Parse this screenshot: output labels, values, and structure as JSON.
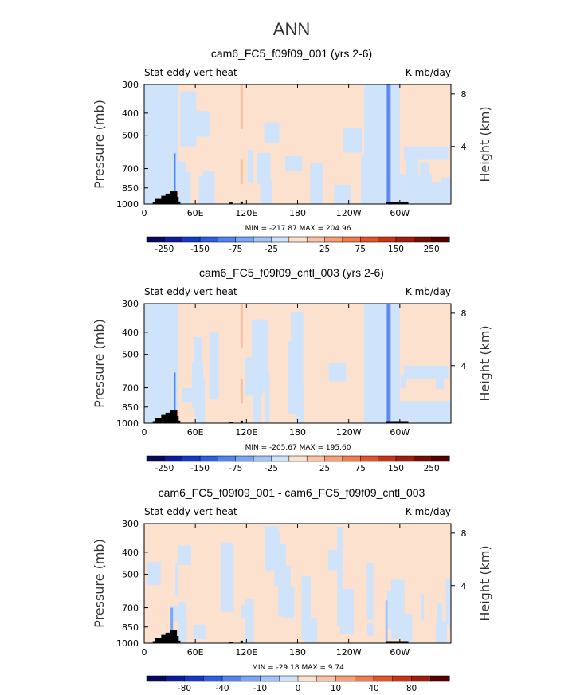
{
  "figure": {
    "title": "ANN"
  },
  "colors": {
    "low": "#cfe3fb",
    "high": "#fde1cf",
    "blue_jet": "#1b3fd9",
    "red_spot": "#e8602a",
    "topo": "#000000"
  },
  "chart_data": [
    {
      "type": "heatmap",
      "title": "cam6_FC5_f09f09_001 (yrs 2-6)",
      "left_label": "Stat eddy vert heat",
      "right_label": "K mb/day",
      "ylabel": "Pressure (mb)",
      "ylabel_right": "Height (km)",
      "x_ticks": [
        "0",
        "60E",
        "120E",
        "180",
        "120W",
        "60W"
      ],
      "x_tick_values": [
        0,
        60,
        120,
        180,
        240,
        300
      ],
      "xlim": [
        0,
        360
      ],
      "y_ticks": [
        "300",
        "400",
        "500",
        "700",
        "850",
        "1000"
      ],
      "y_tick_values": [
        300,
        400,
        500,
        700,
        850,
        1000
      ],
      "ylim": [
        1000,
        300
      ],
      "y_scale": "log",
      "height_ticks": [
        "4",
        "8"
      ],
      "height_tick_values": [
        4,
        8
      ],
      "stats": "MIN = -217.87   MAX = 204.96",
      "min": -217.87,
      "max": 204.96,
      "colorbar_labels": [
        "-250",
        "-150",
        "-75",
        "-25",
        "25",
        "75",
        "150",
        "250"
      ],
      "colorbar_levels": [
        -250,
        -200,
        -150,
        -100,
        -75,
        -50,
        -25,
        -10,
        10,
        25,
        50,
        75,
        100,
        150,
        200,
        250
      ],
      "colorbar_colors": [
        "#08085e",
        "#0d1c9c",
        "#1338cc",
        "#2a5fe6",
        "#4f84f2",
        "#79a6f7",
        "#a3c4fa",
        "#cfe3fb",
        "#fde1cf",
        "#fbc2a4",
        "#f89f76",
        "#f37a4d",
        "#e65327",
        "#cc3214",
        "#a31c0b",
        "#7a0b05",
        "#560000"
      ]
    },
    {
      "type": "heatmap",
      "title": "cam6_FC5_f09f09_cntl_003 (yrs 2-6)",
      "left_label": "Stat eddy vert heat",
      "right_label": "K mb/day",
      "ylabel": "Pressure (mb)",
      "ylabel_right": "Height (km)",
      "x_ticks": [
        "0",
        "60E",
        "120E",
        "180",
        "120W",
        "60W"
      ],
      "x_tick_values": [
        0,
        60,
        120,
        180,
        240,
        300
      ],
      "xlim": [
        0,
        360
      ],
      "y_ticks": [
        "300",
        "400",
        "500",
        "700",
        "850",
        "1000"
      ],
      "y_tick_values": [
        300,
        400,
        500,
        700,
        850,
        1000
      ],
      "ylim": [
        1000,
        300
      ],
      "y_scale": "log",
      "height_ticks": [
        "4",
        "8"
      ],
      "height_tick_values": [
        4,
        8
      ],
      "stats": "MIN = -205.67   MAX = 195.60",
      "min": -205.67,
      "max": 195.6,
      "colorbar_labels": [
        "-250",
        "-150",
        "-75",
        "-25",
        "25",
        "75",
        "150",
        "250"
      ],
      "colorbar_levels": [
        -250,
        -200,
        -150,
        -100,
        -75,
        -50,
        -25,
        -10,
        10,
        25,
        50,
        75,
        100,
        150,
        200,
        250
      ],
      "colorbar_colors": [
        "#08085e",
        "#0d1c9c",
        "#1338cc",
        "#2a5fe6",
        "#4f84f2",
        "#79a6f7",
        "#a3c4fa",
        "#cfe3fb",
        "#fde1cf",
        "#fbc2a4",
        "#f89f76",
        "#f37a4d",
        "#e65327",
        "#cc3214",
        "#a31c0b",
        "#7a0b05",
        "#560000"
      ]
    },
    {
      "type": "heatmap",
      "title": "cam6_FC5_f09f09_001 - cam6_FC5_f09f09_cntl_003",
      "left_label": "Stat eddy vert heat",
      "right_label": "K mb/day",
      "ylabel": "Pressure (mb)",
      "ylabel_right": "Height (km)",
      "x_ticks": [
        "0",
        "60E",
        "120E",
        "180",
        "120W",
        "60W"
      ],
      "x_tick_values": [
        0,
        60,
        120,
        180,
        240,
        300
      ],
      "xlim": [
        0,
        360
      ],
      "y_ticks": [
        "300",
        "400",
        "500",
        "700",
        "850",
        "1000"
      ],
      "y_tick_values": [
        300,
        400,
        500,
        700,
        850,
        1000
      ],
      "ylim": [
        1000,
        300
      ],
      "y_scale": "log",
      "height_ticks": [
        "4",
        "8"
      ],
      "height_tick_values": [
        4,
        8
      ],
      "stats": "MIN = -29.18   MAX =   9.74",
      "min": -29.18,
      "max": 9.74,
      "colorbar_labels": [
        "-80",
        "-40",
        "-10",
        "0",
        "10",
        "40",
        "80"
      ],
      "colorbar_levels": [
        -100,
        -80,
        -60,
        -40,
        -20,
        -10,
        -5,
        0,
        5,
        10,
        20,
        40,
        60,
        80,
        100
      ],
      "colorbar_colors": [
        "#08085e",
        "#0d1c9c",
        "#1338cc",
        "#2a5fe6",
        "#4f84f2",
        "#79a6f7",
        "#a3c4fa",
        "#cfe3fb",
        "#fde1cf",
        "#fbc2a4",
        "#f89f76",
        "#f37a4d",
        "#e65327",
        "#cc3214",
        "#a31c0b",
        "#560000"
      ]
    }
  ]
}
